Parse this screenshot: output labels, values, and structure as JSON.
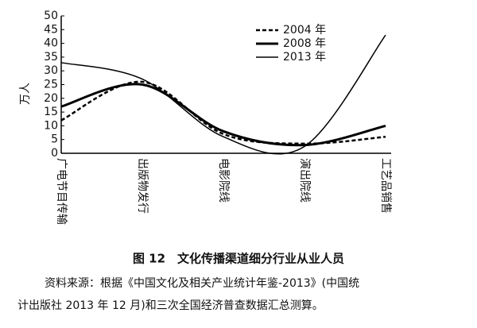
{
  "chart_data": {
    "type": "line",
    "ylabel": "万人",
    "categories": [
      "广电节目传输",
      "出版物发行",
      "电影院线",
      "演出院线",
      "工艺品销售"
    ],
    "series": [
      {
        "name": "2004 年",
        "color": "#000000",
        "line_style": "dashed",
        "line_width": 2.5,
        "values": [
          12,
          26,
          7,
          3.5,
          6
        ]
      },
      {
        "name": "2008 年",
        "color": "#000000",
        "line_style": "solid",
        "line_width": 3,
        "values": [
          17,
          25,
          8,
          3,
          10
        ]
      },
      {
        "name": "2013 年",
        "color": "#000000",
        "line_style": "solid",
        "line_width": 1.5,
        "values": [
          33,
          27,
          6,
          2.5,
          43
        ]
      }
    ],
    "ylim": [
      0,
      50
    ],
    "yticks": [
      0,
      5,
      10,
      15,
      20,
      25,
      30,
      35,
      40,
      45,
      50
    ],
    "legend": "top-right",
    "caption": "图 12　文化传播渠道细分行业从业人员",
    "notes": [
      "资料来源：根据《中国文化及相关产业统计年鉴-2013》(中国统",
      "计出版社 2013 年 12 月)和三次全国经济普查数据汇总测算。"
    ]
  }
}
